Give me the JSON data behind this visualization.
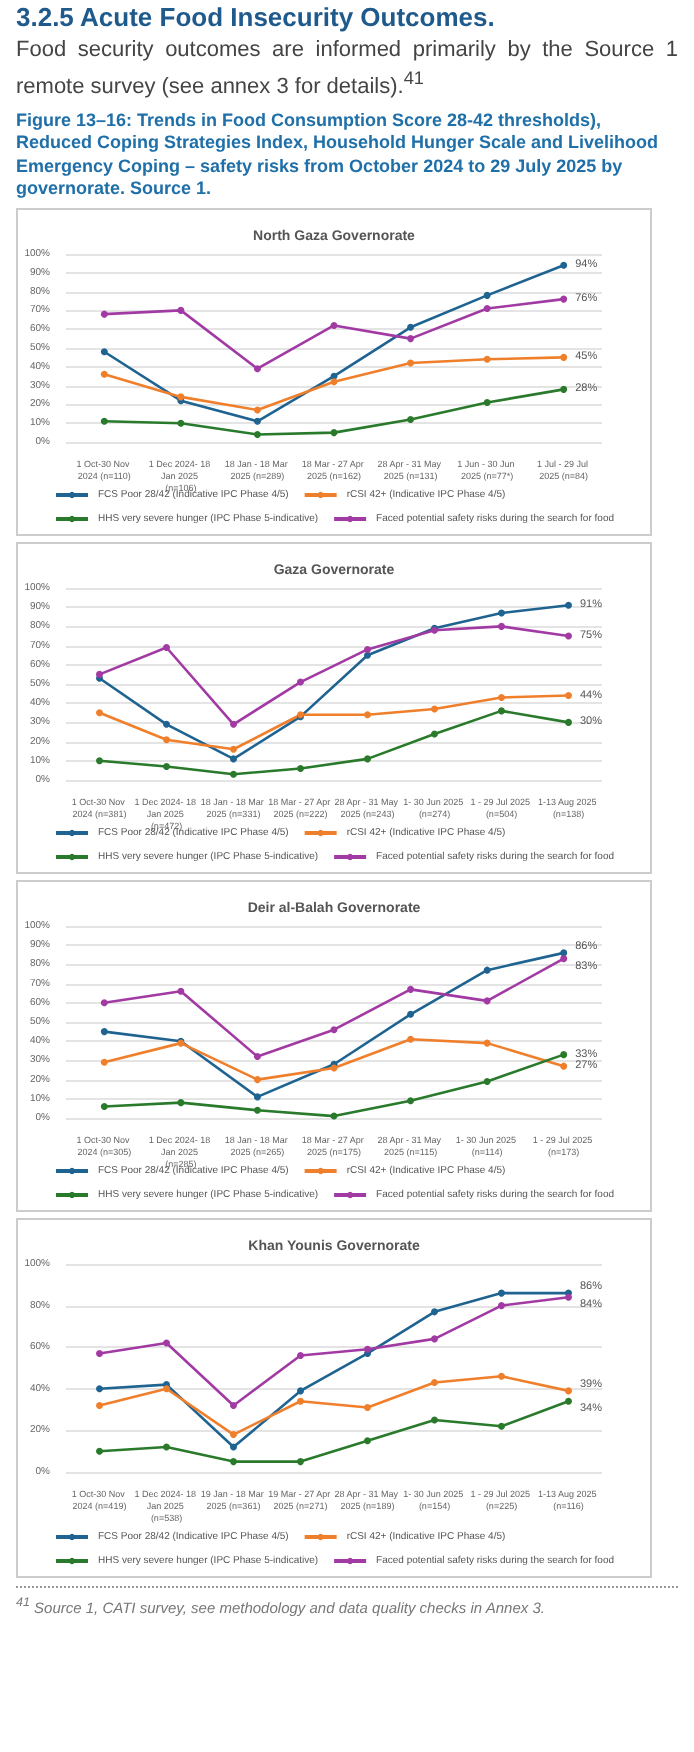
{
  "chart_data": [
    {
      "type": "line",
      "title": "North Gaza Governorate",
      "annotations": [
        "3.2.5 Acute Food Insecurity Outcomes.",
        "Food security outcomes are informed primarily by the Source 1 remote survey (see annex 3 for details).$^{41}$",
        "Figure 13–16: Trends in Food Consumption Score 28-42 thresholds), Reduced Coping Strategies Index, Household Hunger Scale and Livelihood Emergency Coping – safety risks from October 2024 to 29 July 2025 by governorate. Source 1."
      ],
      "categories": [
        "1 Oct-30 Nov 2024 (n=110)",
        "1 Dec 2024- 18 Jan 2025 (n=106)",
        "18 Jan - 18 Mar 2025 (n=289)",
        "18 Mar - 27 Apr 2025 (n=162)",
        "28 Apr - 31 May 2025 (n=131)",
        "1 Jun - 30 Jun 2025 (n=77*)",
        "1 Jul - 29 Jul 2025 (n=84)"
      ],
      "series": [
        {
          "name": "FCS Poor 28/42 (Indicative IPC Phase 4/5)",
          "color": "#1f6391",
          "values": [
            48,
            22,
            11,
            35,
            61,
            78,
            94
          ],
          "value_labels": [
            null,
            null,
            null,
            null,
            null,
            null,
            "94%"
          ]
        },
        {
          "name": "rCSI 42+ (Indicative IPC Phase 4/5)",
          "color": "#f07f2c",
          "values": [
            36,
            24,
            17,
            32,
            42,
            44,
            45
          ],
          "value_labels": [
            null,
            null,
            null,
            null,
            null,
            null,
            "45%"
          ]
        },
        {
          "name": "HHS very severe hunger (IPC Phase 5-indicative)",
          "color": "#2a7a2c",
          "values": [
            11,
            10,
            4,
            5,
            12,
            21,
            28
          ],
          "value_labels": [
            null,
            null,
            null,
            null,
            null,
            null,
            "28%"
          ]
        },
        {
          "name": "Faced potential safety risks during the search for food",
          "color": "#a23aa4",
          "values": [
            68,
            70,
            39,
            62,
            55,
            71,
            76
          ],
          "value_labels": [
            null,
            null,
            null,
            null,
            null,
            null,
            "76%"
          ]
        }
      ],
      "ylim": [
        0,
        100
      ],
      "yticks": [
        {
          "value": 0,
          "label": "0%"
        },
        {
          "value": 10,
          "label": "10%"
        },
        {
          "value": 20,
          "label": "20%"
        },
        {
          "value": 30,
          "label": "30%"
        },
        {
          "value": 40,
          "label": "40%"
        },
        {
          "value": 50,
          "label": "50%"
        },
        {
          "value": 60,
          "label": "60%"
        },
        {
          "value": 70,
          "label": "70%"
        },
        {
          "value": 80,
          "label": "80%"
        },
        {
          "value": 90,
          "label": "90%"
        },
        {
          "value": 100,
          "label": "100%"
        }
      ],
      "grid": "y",
      "legend": "bottom",
      "marker": "circle"
    },
    {
      "type": "line",
      "title": "Gaza Governorate",
      "categories": [
        "1 Oct-30 Nov 2024 (n=381)",
        "1 Dec 2024- 18 Jan 2025 (n=472)",
        "18 Jan - 18 Mar 2025 (n=331)",
        "18 Mar - 27 Apr 2025 (n=222)",
        "28 Apr - 31 May 2025 (n=243)",
        "1- 30 Jun 2025 (n=274)",
        "1 - 29 Jul 2025 (n=504)",
        "1-13 Aug 2025 (n=138)"
      ],
      "series": [
        {
          "name": "FCS Poor 28/42 (Indicative IPC Phase 4/5)",
          "color": "#1f6391",
          "values": [
            53,
            29,
            11,
            33,
            65,
            79,
            87,
            91
          ],
          "value_labels": [
            null,
            null,
            null,
            null,
            null,
            null,
            null,
            "91%"
          ]
        },
        {
          "name": "rCSI 42+ (Indicative IPC Phase 4/5)",
          "color": "#f07f2c",
          "values": [
            35,
            21,
            16,
            34,
            34,
            37,
            43,
            44
          ],
          "value_labels": [
            null,
            null,
            null,
            null,
            null,
            null,
            null,
            "44%"
          ]
        },
        {
          "name": "HHS very severe hunger (IPC Phase 5-indicative)",
          "color": "#2a7a2c",
          "values": [
            10,
            7,
            3,
            6,
            11,
            24,
            36,
            30
          ],
          "value_labels": [
            null,
            null,
            null,
            null,
            null,
            null,
            null,
            "30%"
          ]
        },
        {
          "name": "Faced potential safety risks during the search for food",
          "color": "#a23aa4",
          "values": [
            55,
            69,
            29,
            51,
            68,
            78,
            80,
            75
          ],
          "value_labels": [
            null,
            null,
            null,
            null,
            null,
            null,
            null,
            "75%"
          ]
        }
      ],
      "ylim": [
        0,
        100
      ],
      "yticks": [
        {
          "value": 0,
          "label": "0%"
        },
        {
          "value": 10,
          "label": "10%"
        },
        {
          "value": 20,
          "label": "20%"
        },
        {
          "value": 30,
          "label": "30%"
        },
        {
          "value": 40,
          "label": "40%"
        },
        {
          "value": 50,
          "label": "50%"
        },
        {
          "value": 60,
          "label": "60%"
        },
        {
          "value": 70,
          "label": "70%"
        },
        {
          "value": 80,
          "label": "80%"
        },
        {
          "value": 90,
          "label": "90%"
        },
        {
          "value": 100,
          "label": "100%"
        }
      ],
      "grid": "y",
      "legend": "bottom",
      "marker": "circle"
    },
    {
      "type": "line",
      "title": "Deir al-Balah Governorate",
      "categories": [
        "1 Oct-30 Nov 2024 (n=305)",
        "1 Dec 2024- 18 Jan 2025 (n=285)",
        "18 Jan - 18 Mar 2025 (n=265)",
        "18 Mar - 27 Apr 2025 (n=175)",
        "28 Apr - 31 May 2025 (n=115)",
        "1- 30 Jun 2025 (n=114)",
        "1 - 29 Jul 2025 (n=173)"
      ],
      "series": [
        {
          "name": "FCS Poor 28/42 (Indicative IPC Phase 4/5)",
          "color": "#1f6391",
          "values": [
            45,
            40,
            11,
            28,
            54,
            77,
            86
          ],
          "value_labels": [
            null,
            null,
            null,
            null,
            null,
            null,
            "86%"
          ]
        },
        {
          "name": "rCSI 42+ (Indicative IPC Phase 4/5)",
          "color": "#f07f2c",
          "values": [
            29,
            39,
            20,
            26,
            41,
            39,
            27
          ],
          "value_labels": [
            null,
            null,
            null,
            null,
            null,
            null,
            "27%"
          ]
        },
        {
          "name": "HHS very severe hunger (IPC Phase 5-indicative)",
          "color": "#2a7a2c",
          "values": [
            6,
            8,
            4,
            1,
            9,
            19,
            33
          ],
          "value_labels": [
            null,
            null,
            null,
            null,
            null,
            null,
            "33%"
          ]
        },
        {
          "name": "Faced potential safety risks during the search for food",
          "color": "#a23aa4",
          "values": [
            60,
            66,
            32,
            46,
            67,
            61,
            83
          ],
          "value_labels": [
            null,
            null,
            null,
            null,
            null,
            null,
            "83%"
          ]
        }
      ],
      "ylim": [
        0,
        100
      ],
      "yticks": [
        {
          "value": 0,
          "label": "0%"
        },
        {
          "value": 10,
          "label": "10%"
        },
        {
          "value": 20,
          "label": "20%"
        },
        {
          "value": 30,
          "label": "30%"
        },
        {
          "value": 40,
          "label": "40%"
        },
        {
          "value": 50,
          "label": "50%"
        },
        {
          "value": 60,
          "label": "60%"
        },
        {
          "value": 70,
          "label": "70%"
        },
        {
          "value": 80,
          "label": "80%"
        },
        {
          "value": 90,
          "label": "90%"
        },
        {
          "value": 100,
          "label": "100%"
        }
      ],
      "grid": "y",
      "legend": "bottom",
      "marker": "circle"
    },
    {
      "type": "line",
      "title": "Khan Younis Governorate",
      "annotations": [
        "$^{41}$ Source 1, CATI survey, see methodology and data quality checks in Annex 3."
      ],
      "categories": [
        "1 Oct-30 Nov 2024 (n=419)",
        "1 Dec 2024- 18 Jan 2025 (n=538)",
        "19 Jan - 18 Mar 2025 (n=361)",
        "19 Mar - 27 Apr 2025 (n=271)",
        "28 Apr - 31 May 2025 (n=189)",
        "1- 30 Jun 2025 (n=154)",
        "1 - 29 Jul 2025 (n=225)",
        "1-13 Aug 2025 (n=116)"
      ],
      "series": [
        {
          "name": "FCS Poor 28/42 (Indicative IPC Phase 4/5)",
          "color": "#1f6391",
          "values": [
            40,
            42,
            12,
            39,
            57,
            77,
            86,
            86
          ],
          "value_labels": [
            null,
            null,
            null,
            null,
            null,
            null,
            null,
            "86%"
          ]
        },
        {
          "name": "rCSI 42+ (Indicative IPC Phase 4/5)",
          "color": "#f07f2c",
          "values": [
            32,
            40,
            18,
            34,
            31,
            43,
            46,
            39
          ],
          "value_labels": [
            null,
            null,
            null,
            null,
            null,
            null,
            null,
            "39%"
          ]
        },
        {
          "name": "HHS very severe hunger (IPC Phase 5-indicative)",
          "color": "#2a7a2c",
          "values": [
            10,
            12,
            5,
            5,
            15,
            25,
            22,
            34
          ],
          "value_labels": [
            null,
            null,
            null,
            null,
            null,
            null,
            null,
            "34%"
          ]
        },
        {
          "name": "Faced potential safety risks during the search for food",
          "color": "#a23aa4",
          "values": [
            57,
            62,
            32,
            56,
            59,
            64,
            80,
            84
          ],
          "value_labels": [
            null,
            null,
            null,
            null,
            null,
            null,
            null,
            "84%"
          ]
        }
      ],
      "ylim": [
        0,
        100
      ],
      "yticks": [
        {
          "value": 0,
          "label": "0%"
        },
        {
          "value": 20,
          "label": "20%"
        },
        {
          "value": 40,
          "label": "40%"
        },
        {
          "value": 60,
          "label": "60%"
        },
        {
          "value": 80,
          "label": "80%"
        },
        {
          "value": 100,
          "label": "100%"
        }
      ],
      "grid": "y",
      "legend": "bottom",
      "marker": "circle"
    }
  ]
}
